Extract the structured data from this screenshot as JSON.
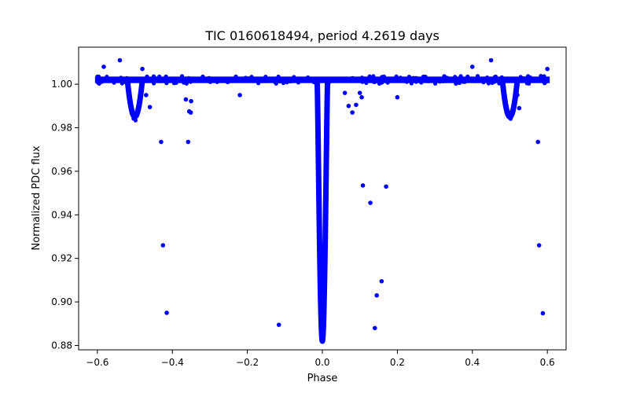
{
  "chart_data": {
    "type": "scatter",
    "title": "TIC 0160618494, period 4.2619 days",
    "xlabel": "Phase",
    "ylabel": "Normalized PDC flux",
    "xlim": [
      -0.65,
      0.65
    ],
    "ylim": [
      0.878,
      1.017
    ],
    "xticks": [
      -0.6,
      -0.4,
      -0.2,
      0.0,
      0.2,
      0.4,
      0.6
    ],
    "xtick_labels": [
      "−0.6",
      "−0.4",
      "−0.2",
      "0.0",
      "0.2",
      "0.4",
      "0.6"
    ],
    "yticks": [
      0.88,
      0.9,
      0.92,
      0.94,
      0.96,
      0.98,
      1.0
    ],
    "ytick_labels": [
      "0.88",
      "0.90",
      "0.92",
      "0.94",
      "0.96",
      "0.98",
      "1.00"
    ],
    "grid": false,
    "marker_color": "#0000ff",
    "series": [
      {
        "band": {
          "phase_range": [
            -0.6,
            0.6
          ],
          "baseline_flux": 1.002,
          "scatter": 0.0015
        },
        "primary_eclipse": {
          "phase": 0.0,
          "min_flux": 0.882,
          "half_width": 0.014
        },
        "secondary_eclipses": [
          {
            "phase": -0.5,
            "min_flux": 0.985,
            "half_width": 0.02
          },
          {
            "phase": 0.5,
            "min_flux": 0.985,
            "half_width": 0.02
          }
        ],
        "outliers": [
          [
            -0.583,
            1.008
          ],
          [
            -0.54,
            1.011
          ],
          [
            -0.43,
            0.9735
          ],
          [
            -0.425,
            0.926
          ],
          [
            -0.415,
            0.895
          ],
          [
            -0.364,
            0.993
          ],
          [
            -0.358,
            0.9735
          ],
          [
            -0.355,
            0.9875
          ],
          [
            -0.35,
            0.9922
          ],
          [
            -0.351,
            0.987
          ],
          [
            -0.22,
            0.995
          ],
          [
            -0.116,
            0.8895
          ],
          [
            -0.47,
            0.995
          ],
          [
            -0.46,
            0.9895
          ],
          [
            -0.48,
            1.007
          ],
          [
            0.06,
            0.996
          ],
          [
            0.07,
            0.99
          ],
          [
            0.08,
            0.987
          ],
          [
            0.09,
            0.9905
          ],
          [
            0.1,
            0.996
          ],
          [
            0.105,
            0.994
          ],
          [
            0.108,
            0.9535
          ],
          [
            0.128,
            0.9455
          ],
          [
            0.14,
            0.888
          ],
          [
            0.145,
            0.903
          ],
          [
            0.158,
            0.9095
          ],
          [
            0.17,
            0.953
          ],
          [
            0.2,
            0.994
          ],
          [
            0.4,
            1.008
          ],
          [
            0.45,
            1.011
          ],
          [
            0.52,
            0.995
          ],
          [
            0.525,
            0.989
          ],
          [
            0.575,
            0.9735
          ],
          [
            0.578,
            0.926
          ],
          [
            0.588,
            0.8948
          ],
          [
            0.6,
            1.007
          ]
        ]
      }
    ]
  }
}
